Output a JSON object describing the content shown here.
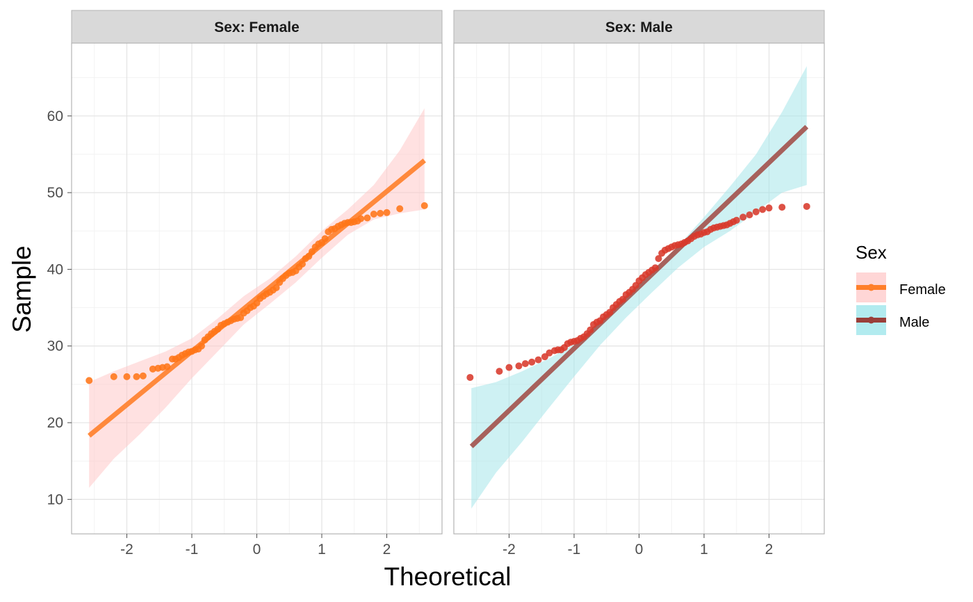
{
  "chart_data": {
    "type": "scatter",
    "subtype": "qq-plot-faceted",
    "xlabel": "Theoretical",
    "ylabel": "Sample",
    "xlim": [
      -2.85,
      2.85
    ],
    "ylim": [
      5.5,
      69.5
    ],
    "x_ticks": [
      -2,
      -1,
      0,
      1,
      2
    ],
    "x_tick_labels": [
      "-2",
      "-1",
      "0",
      "1",
      "2"
    ],
    "y_ticks": [
      10,
      20,
      30,
      40,
      50,
      60
    ],
    "y_tick_labels": [
      "10",
      "20",
      "30",
      "40",
      "50",
      "60"
    ],
    "grid": true,
    "legend": {
      "title": "Sex",
      "position": "right",
      "entries": [
        {
          "label": "Female",
          "color": "#ff7f2a",
          "fill": "#ffd6d6"
        },
        {
          "label": "Male",
          "color": "#9a3f3a",
          "fill": "#b2ebef"
        }
      ]
    },
    "facets": [
      {
        "strip_label": "Sex: Female",
        "point_color": "#ff7518",
        "line_color": "#ff7f2a",
        "band_color": "#ffc9c9",
        "line": {
          "x": [
            -2.58,
            2.58
          ],
          "y": [
            18.3,
            54.2
          ]
        },
        "band": {
          "x": [
            -2.58,
            -2.2,
            -1.8,
            -1.4,
            -1.0,
            -0.6,
            -0.2,
            0.2,
            0.6,
            1.0,
            1.4,
            1.8,
            2.2,
            2.58
          ],
          "upper": [
            25.3,
            26.7,
            28.0,
            29.3,
            31.0,
            33.6,
            36.5,
            38.8,
            41.7,
            45.0,
            47.8,
            51.0,
            55.5,
            61.0
          ],
          "lower": [
            11.5,
            15.3,
            18.5,
            22.0,
            25.8,
            29.3,
            32.8,
            35.5,
            38.3,
            41.5,
            44.5,
            46.5,
            47.3,
            47.8
          ]
        },
        "points": {
          "x": [
            -2.58,
            -2.2,
            -2.0,
            -1.85,
            -1.75,
            -1.6,
            -1.52,
            -1.45,
            -1.38,
            -1.3,
            -1.25,
            -1.2,
            -1.15,
            -1.1,
            -1.05,
            -1.0,
            -0.95,
            -0.9,
            -0.85,
            -0.8,
            -0.75,
            -0.7,
            -0.65,
            -0.6,
            -0.55,
            -0.5,
            -0.45,
            -0.4,
            -0.35,
            -0.3,
            -0.25,
            -0.2,
            -0.15,
            -0.1,
            -0.05,
            0.0,
            0.05,
            0.1,
            0.15,
            0.2,
            0.25,
            0.3,
            0.35,
            0.4,
            0.45,
            0.5,
            0.55,
            0.6,
            0.65,
            0.7,
            0.75,
            0.8,
            0.85,
            0.9,
            0.95,
            1.0,
            1.05,
            1.1,
            1.15,
            1.2,
            1.25,
            1.3,
            1.35,
            1.4,
            1.45,
            1.5,
            1.55,
            1.6,
            1.7,
            1.8,
            1.9,
            2.0,
            2.2,
            2.58
          ],
          "y": [
            25.5,
            26.0,
            26.0,
            26.0,
            26.1,
            27.0,
            27.1,
            27.2,
            27.3,
            28.3,
            28.3,
            28.5,
            28.8,
            29.0,
            29.2,
            29.3,
            29.5,
            29.6,
            30.0,
            30.8,
            31.2,
            31.6,
            31.9,
            32.2,
            32.7,
            32.9,
            33.1,
            33.3,
            33.5,
            33.6,
            33.7,
            34.3,
            34.6,
            35.0,
            35.2,
            35.6,
            36.2,
            36.5,
            36.8,
            37.0,
            37.3,
            37.6,
            38.3,
            38.8,
            39.2,
            39.5,
            39.6,
            39.8,
            40.3,
            40.7,
            41.4,
            41.7,
            42.3,
            42.9,
            43.3,
            43.5,
            44.0,
            44.9,
            45.2,
            45.3,
            45.6,
            45.8,
            46.0,
            46.1,
            46.1,
            46.2,
            46.3,
            46.6,
            46.7,
            47.2,
            47.3,
            47.4,
            47.9,
            48.3
          ]
        }
      },
      {
        "strip_label": "Sex: Male",
        "point_color": "#d8392b",
        "line_color": "#a3514b",
        "band_color": "#a6e6ea",
        "line": {
          "x": [
            -2.58,
            2.58
          ],
          "y": [
            16.9,
            58.6
          ]
        },
        "band": {
          "x": [
            -2.58,
            -2.2,
            -1.8,
            -1.4,
            -1.0,
            -0.6,
            -0.2,
            0.2,
            0.6,
            1.0,
            1.4,
            1.8,
            2.2,
            2.58
          ],
          "upper": [
            24.5,
            25.3,
            26.7,
            28.3,
            30.2,
            33.0,
            36.2,
            39.6,
            43.0,
            46.8,
            50.8,
            55.0,
            60.5,
            66.5
          ],
          "lower": [
            8.8,
            13.5,
            17.5,
            21.8,
            26.0,
            30.1,
            33.7,
            37.0,
            40.2,
            42.9,
            45.0,
            47.5,
            50.0,
            51.0
          ]
        },
        "points": {
          "x": [
            -2.6,
            -2.15,
            -2.0,
            -1.85,
            -1.75,
            -1.65,
            -1.55,
            -1.45,
            -1.38,
            -1.3,
            -1.25,
            -1.2,
            -1.15,
            -1.1,
            -1.05,
            -1.0,
            -0.95,
            -0.9,
            -0.85,
            -0.8,
            -0.75,
            -0.7,
            -0.65,
            -0.6,
            -0.55,
            -0.5,
            -0.45,
            -0.4,
            -0.35,
            -0.3,
            -0.25,
            -0.2,
            -0.15,
            -0.1,
            -0.05,
            0.0,
            0.05,
            0.1,
            0.15,
            0.2,
            0.25,
            0.3,
            0.35,
            0.4,
            0.45,
            0.5,
            0.55,
            0.6,
            0.65,
            0.7,
            0.75,
            0.8,
            0.85,
            0.9,
            0.95,
            1.0,
            1.05,
            1.1,
            1.15,
            1.2,
            1.25,
            1.3,
            1.35,
            1.4,
            1.45,
            1.5,
            1.6,
            1.7,
            1.8,
            1.9,
            2.0,
            2.2,
            2.58
          ],
          "y": [
            25.9,
            26.7,
            27.2,
            27.4,
            27.7,
            27.9,
            28.2,
            28.6,
            29.1,
            29.4,
            29.5,
            29.5,
            29.8,
            30.3,
            30.5,
            30.6,
            30.7,
            31.0,
            31.2,
            31.6,
            32.1,
            32.8,
            33.1,
            33.3,
            33.8,
            34.1,
            34.4,
            35.0,
            35.4,
            35.8,
            36.1,
            36.7,
            37.0,
            37.4,
            37.9,
            38.5,
            38.9,
            39.3,
            39.6,
            39.9,
            40.2,
            41.4,
            42.1,
            42.5,
            42.7,
            42.9,
            43.1,
            43.2,
            43.3,
            43.5,
            43.7,
            44.0,
            44.3,
            44.5,
            44.6,
            44.8,
            44.9,
            45.2,
            45.4,
            45.5,
            45.6,
            45.7,
            45.8,
            46.0,
            46.2,
            46.4,
            46.8,
            47.1,
            47.5,
            47.8,
            48.0,
            48.1,
            48.2
          ]
        }
      }
    ]
  }
}
